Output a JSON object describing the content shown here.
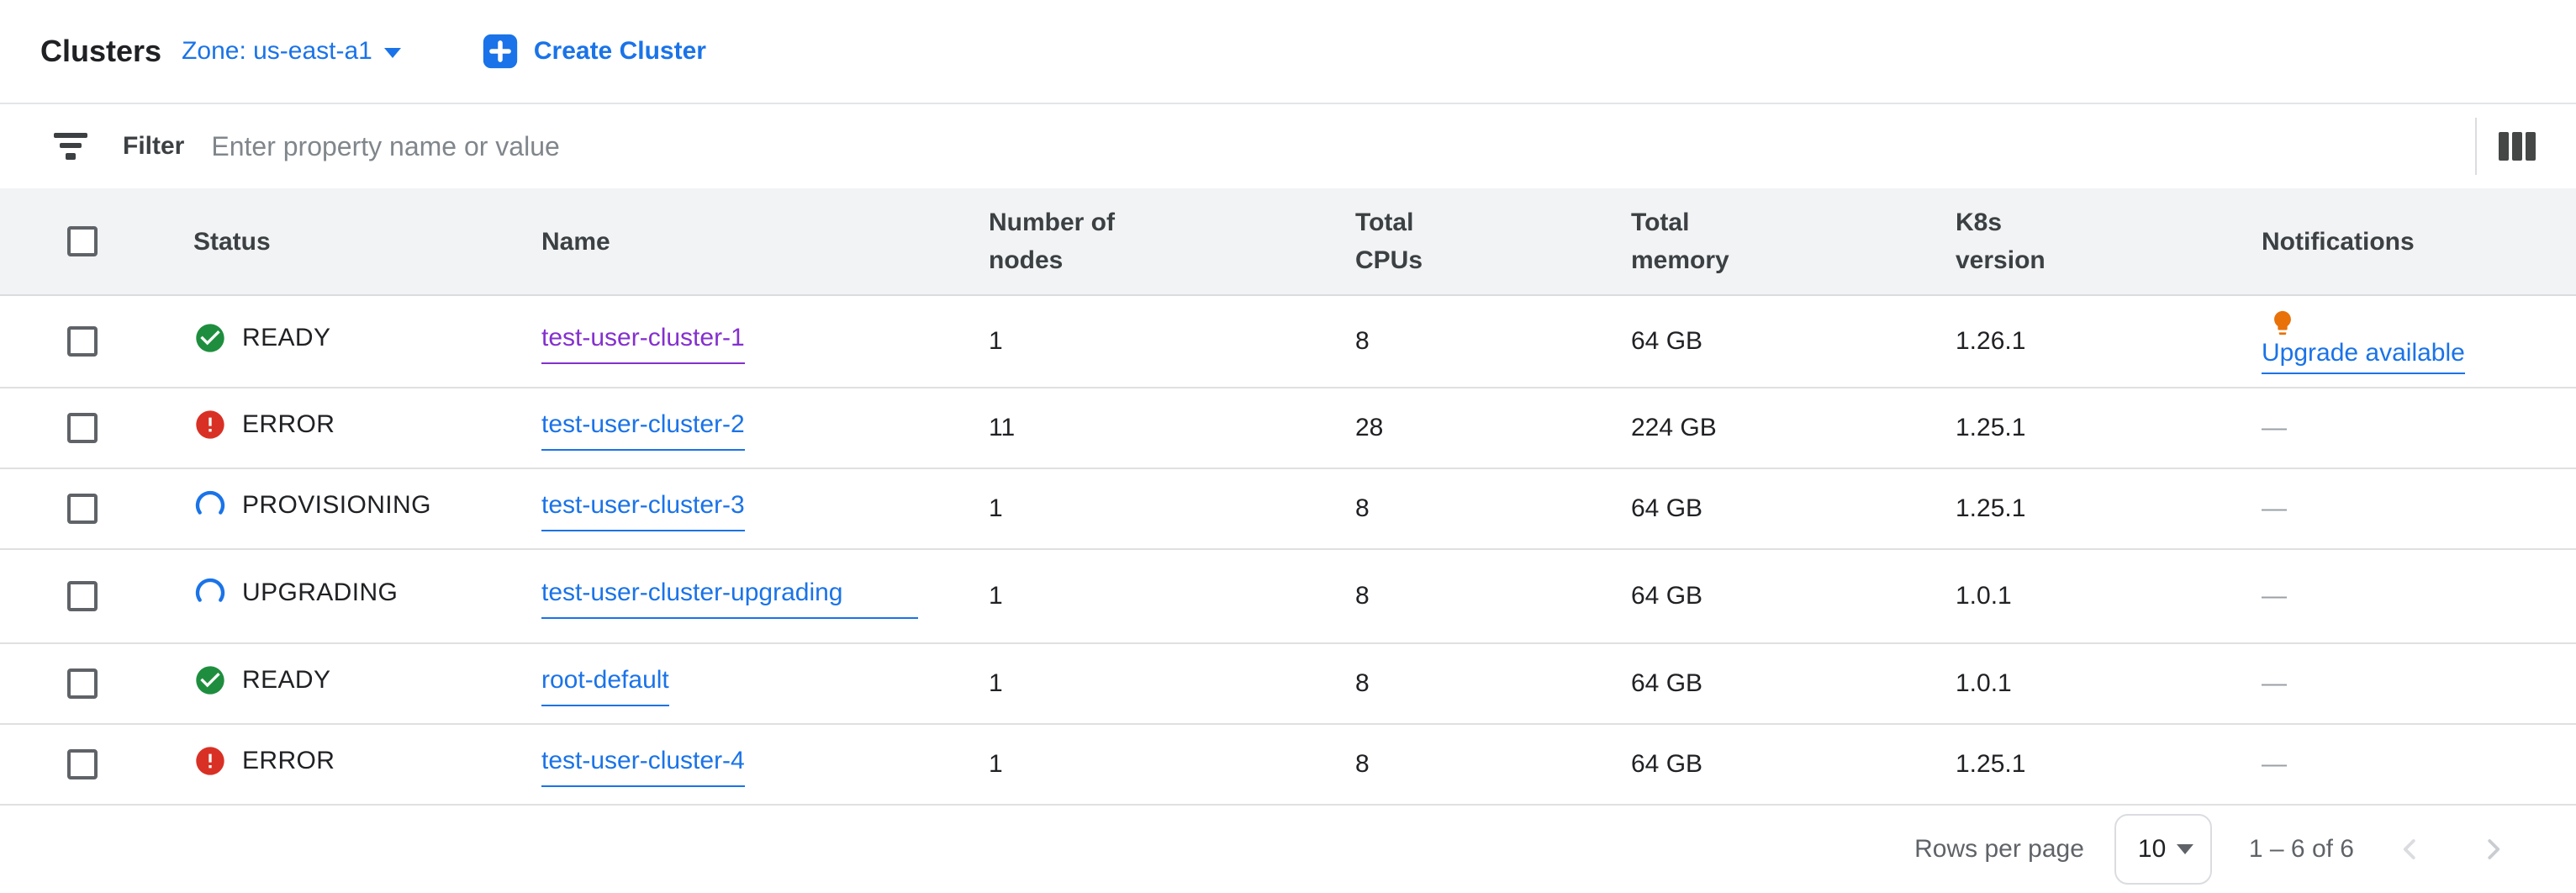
{
  "header": {
    "title": "Clusters",
    "zone_label": "Zone: us-east-a1",
    "create_button_label": "Create Cluster"
  },
  "filter": {
    "label": "Filter",
    "placeholder": "Enter property name or value"
  },
  "table": {
    "columns": [
      "Status",
      "Name",
      "Number of\nnodes",
      "Total\nCPUs",
      "Total\nmemory",
      "K8s\nversion",
      "Notifications"
    ],
    "rows": [
      {
        "status": "READY",
        "status_kind": "ready",
        "name": "test-user-cluster-1",
        "name_visited": true,
        "name_wrap": false,
        "nodes": "1",
        "cpus": "8",
        "memory": "64 GB",
        "k8s": "1.26.1",
        "notification": {
          "type": "link",
          "label": "Upgrade available"
        }
      },
      {
        "status": "ERROR",
        "status_kind": "error",
        "name": "test-user-cluster-2",
        "name_visited": false,
        "name_wrap": false,
        "nodes": "11",
        "cpus": "28",
        "memory": "224 GB",
        "k8s": "1.25.1",
        "notification": {
          "type": "empty",
          "label": "—"
        }
      },
      {
        "status": "PROVISIONING",
        "status_kind": "progress",
        "name": "test-user-cluster-3",
        "name_visited": false,
        "name_wrap": false,
        "nodes": "1",
        "cpus": "8",
        "memory": "64 GB",
        "k8s": "1.25.1",
        "notification": {
          "type": "empty",
          "label": "—"
        }
      },
      {
        "status": "UPGRADING",
        "status_kind": "progress",
        "name": "test-user-cluster-upgrading",
        "name_visited": false,
        "name_wrap": true,
        "nodes": "1",
        "cpus": "8",
        "memory": "64 GB",
        "k8s": "1.0.1",
        "notification": {
          "type": "empty",
          "label": "—"
        }
      },
      {
        "status": "READY",
        "status_kind": "ready",
        "name": "root-default",
        "name_visited": false,
        "name_wrap": false,
        "nodes": "1",
        "cpus": "8",
        "memory": "64 GB",
        "k8s": "1.0.1",
        "notification": {
          "type": "empty",
          "label": "—"
        }
      },
      {
        "status": "ERROR",
        "status_kind": "error",
        "name": "test-user-cluster-4",
        "name_visited": false,
        "name_wrap": false,
        "nodes": "1",
        "cpus": "8",
        "memory": "64 GB",
        "k8s": "1.25.1",
        "notification": {
          "type": "empty",
          "label": "—"
        }
      }
    ]
  },
  "footer": {
    "rows_per_page_label": "Rows per page",
    "rows_per_page_value": "10",
    "range_label": "1 – 6 of 6"
  },
  "colors": {
    "accent_blue": "#1a73e8",
    "visited_purple": "#8430ce",
    "status_green": "#1e8e3e",
    "status_red": "#d93025",
    "bulb_orange": "#e8710a",
    "header_bg": "#f1f3f4"
  }
}
